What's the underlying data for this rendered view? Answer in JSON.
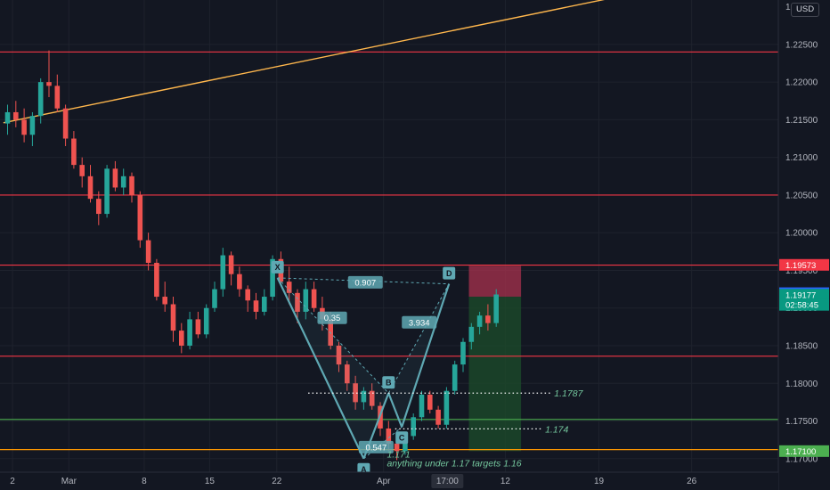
{
  "axis": {
    "currency_label": "USD",
    "top_partial_tick": "1.",
    "y_ticks": [
      "1.22500",
      "1.22000",
      "1.21500",
      "1.21000",
      "1.20500",
      "1.20000",
      "1.19500",
      "1.19000",
      "1.18500",
      "1.18000",
      "1.17500",
      "1.17000"
    ],
    "x_ticks": [
      {
        "label": "2",
        "pos": 0.6
      },
      {
        "label": "Mar",
        "pos": 7.4
      },
      {
        "label": "8",
        "pos": 16.5
      },
      {
        "label": "15",
        "pos": 24.4
      },
      {
        "label": "22",
        "pos": 32.5
      },
      {
        "label": "Apr",
        "pos": 45.4
      },
      {
        "label": "12",
        "pos": 60.1
      },
      {
        "label": "19",
        "pos": 71.4
      },
      {
        "label": "26",
        "pos": 82.6
      }
    ],
    "time_marker": {
      "label": "17:00",
      "pos": 53.1
    }
  },
  "price_badges": [
    {
      "label": "1.19573",
      "value": 1.19573,
      "color": "#f23645"
    },
    {
      "label": "1.19197",
      "value": 1.19197,
      "color": "#2962ff"
    },
    {
      "label": "1.19177",
      "value": 1.19177,
      "color": "#089981"
    },
    {
      "label": "02:58:45",
      "value": 1.19042,
      "color": "#089981"
    },
    {
      "label": "1.17100",
      "value": 1.171,
      "color": "#4caf50"
    }
  ],
  "colors": {
    "background": "#131722",
    "grid": "#1e222d",
    "up_candle": "#26a69a",
    "down_candle": "#ef5350",
    "resistance_line": "#f23645",
    "support_line": "#4caf50",
    "orange_line": "#ff9800",
    "trend_line": "#ffb74d",
    "pattern": "#5fa8b3",
    "stop_zone": "#a8324d",
    "target_zone": "#1c4a2a"
  },
  "chart_data": {
    "type": "candlestick",
    "instrument_currency": "USD",
    "ylim": [
      1.1682,
      1.2309
    ],
    "horizontal_lines": [
      {
        "value": 1.224,
        "color": "red"
      },
      {
        "value": 1.205,
        "color": "red"
      },
      {
        "value": 1.1957,
        "color": "red"
      },
      {
        "value": 1.1836,
        "color": "red"
      },
      {
        "value": 1.1752,
        "color": "green"
      },
      {
        "value": 1.1712,
        "color": "orange"
      }
    ],
    "trend_line": {
      "from": [
        -0.5,
        1.2146
      ],
      "to": [
        73.5,
        1.2313
      ]
    },
    "pattern": {
      "points": [
        {
          "label": "X",
          "x": 32.6,
          "y": 1.194
        },
        {
          "label": "A",
          "x": 43.0,
          "y": 1.17
        },
        {
          "label": "B",
          "x": 46.0,
          "y": 1.1787
        },
        {
          "label": "C",
          "x": 47.6,
          "y": 1.1742
        },
        {
          "label": "D",
          "x": 53.3,
          "y": 1.1932
        }
      ],
      "ratios": [
        {
          "label": "0.907",
          "x": 43.2,
          "y": 1.19342
        },
        {
          "label": "0.35",
          "x": 39.2,
          "y": 1.1887
        },
        {
          "label": "3.934",
          "x": 49.7,
          "y": 1.1881
        },
        {
          "label": "0.547",
          "x": 44.5,
          "y": 1.17152
        }
      ]
    },
    "level_labels": [
      {
        "text": "1.1787",
        "from": 36.3,
        "to": 65.6,
        "y": 1.1787,
        "label_x": 66.0
      },
      {
        "text": "1.174",
        "from": 46.8,
        "to": 64.5,
        "y": 1.17395,
        "label_x": 64.9
      },
      {
        "text": "1.171",
        "y": 1.17063,
        "label_x": 45.8
      }
    ],
    "annotation": {
      "text": "anything under 1.17 targets 1.16",
      "x": 45.8,
      "y": 1.16944
    },
    "position": {
      "x_start": 55.7,
      "x_end": 62.0,
      "entry": 1.1915,
      "stop": 1.1956,
      "target": 1.171
    },
    "candles": [
      [
        1.2145,
        1.217,
        1.213,
        1.216
      ],
      [
        1.216,
        1.2175,
        1.214,
        1.215
      ],
      [
        1.215,
        1.2165,
        1.212,
        1.213
      ],
      [
        1.213,
        1.216,
        1.2115,
        1.2155
      ],
      [
        1.2155,
        1.2205,
        1.2145,
        1.22
      ],
      [
        1.22,
        1.2242,
        1.218,
        1.2195
      ],
      [
        1.2195,
        1.221,
        1.216,
        1.2165
      ],
      [
        1.2165,
        1.217,
        1.2115,
        1.2125
      ],
      [
        1.2125,
        1.2135,
        1.2085,
        1.209
      ],
      [
        1.209,
        1.21,
        1.206,
        1.2075
      ],
      [
        1.2075,
        1.209,
        1.204,
        1.2045
      ],
      [
        1.2045,
        1.2055,
        1.201,
        1.2025
      ],
      [
        1.2025,
        1.209,
        1.202,
        1.2085
      ],
      [
        1.2085,
        1.2095,
        1.2055,
        1.206
      ],
      [
        1.206,
        1.2085,
        1.205,
        1.2075
      ],
      [
        1.2075,
        1.208,
        1.204,
        1.205
      ],
      [
        1.205,
        1.2055,
        1.198,
        1.199
      ],
      [
        1.199,
        1.2,
        1.195,
        1.196
      ],
      [
        1.196,
        1.1965,
        1.191,
        1.1915
      ],
      [
        1.1915,
        1.1935,
        1.1895,
        1.1905
      ],
      [
        1.1905,
        1.1915,
        1.1855,
        1.187
      ],
      [
        1.187,
        1.188,
        1.184,
        1.185
      ],
      [
        1.185,
        1.1895,
        1.1845,
        1.1885
      ],
      [
        1.1885,
        1.1895,
        1.186,
        1.1865
      ],
      [
        1.1865,
        1.1905,
        1.186,
        1.19
      ],
      [
        1.19,
        1.1935,
        1.1895,
        1.1925
      ],
      [
        1.1925,
        1.198,
        1.1915,
        1.197
      ],
      [
        1.197,
        1.1975,
        1.193,
        1.1945
      ],
      [
        1.1945,
        1.1955,
        1.1915,
        1.1925
      ],
      [
        1.1925,
        1.193,
        1.1895,
        1.191
      ],
      [
        1.191,
        1.192,
        1.1885,
        1.1895
      ],
      [
        1.1895,
        1.1925,
        1.189,
        1.1915
      ],
      [
        1.1915,
        1.197,
        1.191,
        1.1965
      ],
      [
        1.1965,
        1.1975,
        1.193,
        1.1935
      ],
      [
        1.1935,
        1.1955,
        1.1905,
        1.192
      ],
      [
        1.192,
        1.1925,
        1.188,
        1.1895
      ],
      [
        1.1895,
        1.1935,
        1.1885,
        1.1925
      ],
      [
        1.1925,
        1.1935,
        1.1895,
        1.19
      ],
      [
        1.19,
        1.1915,
        1.187,
        1.1885
      ],
      [
        1.1885,
        1.1895,
        1.1845,
        1.185
      ],
      [
        1.185,
        1.1855,
        1.1815,
        1.1825
      ],
      [
        1.1825,
        1.183,
        1.179,
        1.18
      ],
      [
        1.18,
        1.181,
        1.1765,
        1.1775
      ],
      [
        1.1775,
        1.1795,
        1.1765,
        1.179
      ],
      [
        1.179,
        1.18,
        1.1765,
        1.177
      ],
      [
        1.177,
        1.1775,
        1.173,
        1.174
      ],
      [
        1.174,
        1.175,
        1.171,
        1.172
      ],
      [
        1.172,
        1.173,
        1.1698,
        1.171
      ],
      [
        1.171,
        1.1735,
        1.1705,
        1.173
      ],
      [
        1.173,
        1.176,
        1.1725,
        1.1755
      ],
      [
        1.1755,
        1.179,
        1.175,
        1.1785
      ],
      [
        1.1785,
        1.179,
        1.176,
        1.1765
      ],
      [
        1.1765,
        1.177,
        1.174,
        1.1745
      ],
      [
        1.1745,
        1.1795,
        1.174,
        1.179
      ],
      [
        1.179,
        1.183,
        1.1785,
        1.1825
      ],
      [
        1.1825,
        1.186,
        1.1815,
        1.1855
      ],
      [
        1.1855,
        1.188,
        1.1845,
        1.1875
      ],
      [
        1.1875,
        1.1895,
        1.1865,
        1.189
      ],
      [
        1.189,
        1.1905,
        1.187,
        1.188
      ],
      [
        1.188,
        1.1925,
        1.1875,
        1.1918
      ]
    ]
  }
}
